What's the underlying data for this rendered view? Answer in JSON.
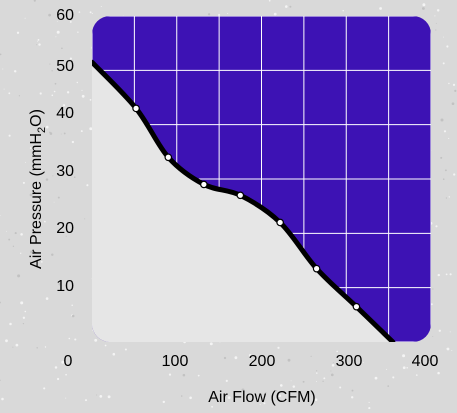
{
  "chart_data": {
    "type": "line",
    "title": "",
    "xlabel": "Air Flow (CFM)",
    "ylabel": "Air Pressure (mmH2O)",
    "ylabel_parts": {
      "main": "Air Pressure (mmH",
      "sub": "2",
      "tail": "O)"
    },
    "xlim": [
      0,
      400
    ],
    "ylim": [
      0,
      60
    ],
    "xticks": [
      "0",
      "100",
      "200",
      "300",
      "400"
    ],
    "yticks": [
      "10",
      "20",
      "30",
      "40",
      "50",
      "60"
    ],
    "grid": true,
    "series": [
      {
        "x": [
          0,
          52,
          90,
          132,
          175,
          222,
          265,
          312,
          355
        ],
        "y": [
          51.5,
          43,
          34,
          29,
          27,
          22,
          13.5,
          6.5,
          0
        ],
        "markers": [
          {
            "x": 52,
            "y": 43
          },
          {
            "x": 90,
            "y": 34
          },
          {
            "x": 132,
            "y": 29
          },
          {
            "x": 175,
            "y": 27
          },
          {
            "x": 222,
            "y": 22
          },
          {
            "x": 265,
            "y": 13.5
          },
          {
            "x": 312,
            "y": 6.5
          }
        ]
      }
    ],
    "colors": {
      "upper_region": "#3d12b4",
      "lower_region": "#e6e6e6",
      "curve": "#000000",
      "marker_fill": "#ffffff",
      "grid": "#ffffff",
      "background": "#d9d9d9"
    }
  }
}
